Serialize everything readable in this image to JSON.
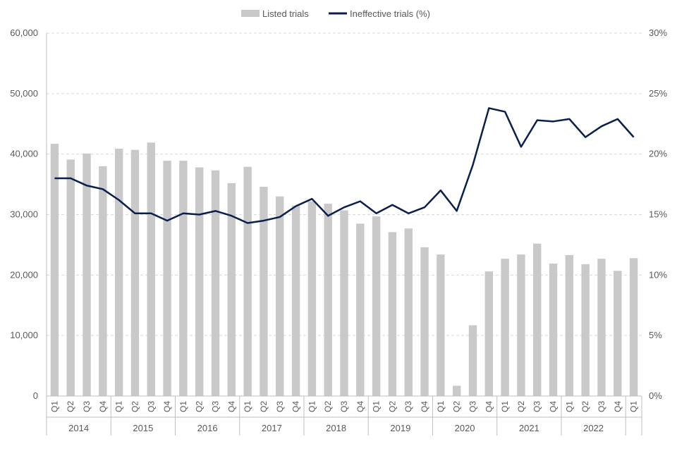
{
  "chart_data": {
    "type": "bar+line",
    "legend": {
      "placement": "top-center",
      "entries": [
        "Listed trials",
        "Ineffective trials (%)"
      ]
    },
    "colors": {
      "bars": "#c9c9c9",
      "line": "#0b1f4f",
      "grid": "#d9d9d9",
      "axis": "#bfbfbf",
      "text": "#595959"
    },
    "grid": true,
    "y_left": {
      "ylim": [
        0,
        60000
      ],
      "ticks": [
        "0",
        "10,000",
        "20,000",
        "30,000",
        "40,000",
        "50,000",
        "60,000"
      ],
      "tick_values": [
        0,
        10000,
        20000,
        30000,
        40000,
        50000,
        60000
      ]
    },
    "y_right": {
      "ylim": [
        0,
        30
      ],
      "ticks": [
        "0%",
        "5%",
        "10%",
        "15%",
        "20%",
        "25%",
        "30%"
      ],
      "tick_values": [
        0,
        5,
        10,
        15,
        20,
        25,
        30
      ]
    },
    "categories": [
      "Q1",
      "Q2",
      "Q3",
      "Q4",
      "Q1",
      "Q2",
      "Q3",
      "Q4",
      "Q1",
      "Q2",
      "Q3",
      "Q4",
      "Q1",
      "Q2",
      "Q3",
      "Q4",
      "Q1",
      "Q2",
      "Q3",
      "Q4",
      "Q1",
      "Q2",
      "Q3",
      "Q4",
      "Q1",
      "Q2",
      "Q3",
      "Q4",
      "Q1",
      "Q2",
      "Q3",
      "Q4",
      "Q1",
      "Q2",
      "Q3",
      "Q4",
      "Q1"
    ],
    "years": [
      {
        "label": "2014",
        "count": 4
      },
      {
        "label": "2015",
        "count": 4
      },
      {
        "label": "2016",
        "count": 4
      },
      {
        "label": "2017",
        "count": 4
      },
      {
        "label": "2018",
        "count": 4
      },
      {
        "label": "2019",
        "count": 4
      },
      {
        "label": "2020",
        "count": 4
      },
      {
        "label": "2021",
        "count": 4
      },
      {
        "label": "2022",
        "count": 4
      },
      {
        "label": "",
        "count": 1
      }
    ],
    "series": [
      {
        "name": "Listed trials",
        "type": "bar",
        "axis": "left",
        "values": [
          41700,
          39100,
          40100,
          38000,
          40900,
          40700,
          41900,
          38900,
          38900,
          37800,
          37300,
          35200,
          37900,
          34600,
          33000,
          31500,
          32200,
          31800,
          30700,
          28500,
          29700,
          27100,
          27700,
          24600,
          23400,
          1700,
          11700,
          20600,
          22700,
          23400,
          25200,
          21900,
          23300,
          21800,
          22700,
          20700,
          22800
        ]
      },
      {
        "name": "Ineffective trials (%)",
        "type": "line",
        "axis": "right",
        "values": [
          18.0,
          18.0,
          17.4,
          17.1,
          16.2,
          15.1,
          15.1,
          14.5,
          15.1,
          15.0,
          15.3,
          14.9,
          14.3,
          14.5,
          14.8,
          15.7,
          16.3,
          14.9,
          15.6,
          16.1,
          15.1,
          15.8,
          15.1,
          15.6,
          17.0,
          15.3,
          19.1,
          23.8,
          23.5,
          20.6,
          22.8,
          22.7,
          22.9,
          21.4,
          22.3,
          22.9,
          21.4
        ]
      }
    ]
  }
}
